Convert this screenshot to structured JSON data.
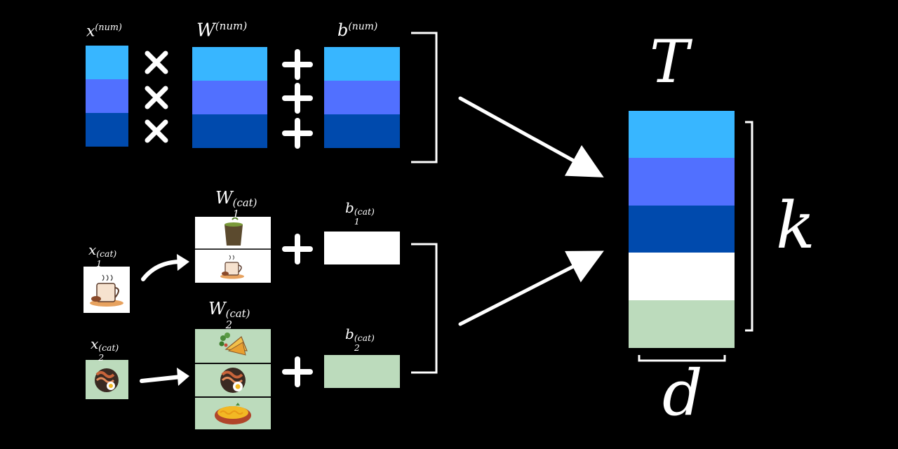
{
  "colors": {
    "background": "#000000",
    "light_blue": "#38b6ff",
    "mid_blue": "#5170ff",
    "dark_blue": "#004aad",
    "white": "#ffffff",
    "light_green": "#bcdbbc",
    "stroke": "#ffffff"
  },
  "labels": {
    "x_num": {
      "base": "x",
      "sup": "(num)"
    },
    "w_num": {
      "base": "W",
      "sup": "(num)"
    },
    "b_num": {
      "base": "b",
      "sup": "(num)"
    },
    "x1_cat": {
      "base": "x",
      "sub": "1",
      "sup": "(cat)"
    },
    "x2_cat": {
      "base": "x",
      "sub": "2",
      "sup": "(cat)"
    },
    "w1_cat": {
      "base": "W",
      "sub": "1",
      "sup": "(cat)"
    },
    "w2_cat": {
      "base": "W",
      "sub": "2",
      "sup": "(cat)"
    },
    "b1_cat": {
      "base": "b",
      "sub": "1",
      "sup": "(cat)"
    },
    "b2_cat": {
      "base": "b",
      "sub": "2",
      "sup": "(cat)"
    },
    "T": "T",
    "k": "k",
    "d": "d"
  },
  "operators": {
    "times": "×",
    "plus": "+"
  },
  "icons": {
    "x1_cat": "coffee-cup-icon",
    "x2_cat": "bacon-egg-plate-icon",
    "w1_rows": [
      "matcha-cup-icon",
      "coffee-cup-icon"
    ],
    "w2_rows": [
      "leaf-sandwich-icon",
      "bacon-egg-plate-icon",
      "noodle-bowl-icon"
    ]
  }
}
